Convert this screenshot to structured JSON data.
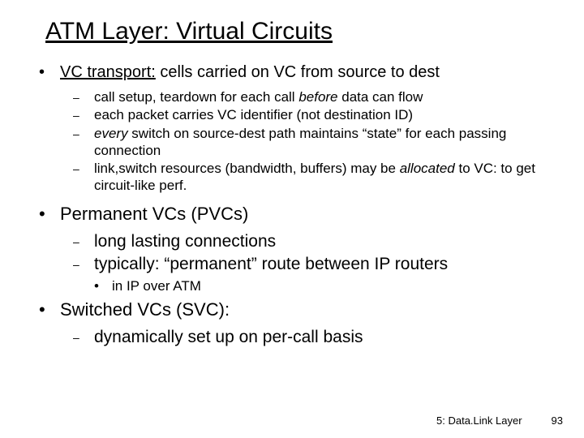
{
  "title": "ATM Layer: Virtual Circuits",
  "b1_a_pre": "VC transport:",
  "b1_a_post": " cells carried on VC from source to dest",
  "b2_a1_pre": "call setup, teardown for each call ",
  "b2_a1_ital": "before",
  "b2_a1_post": " data can flow",
  "b2_a2": "each packet carries VC identifier (not destination ID)",
  "b2_a3_ital": "every",
  "b2_a3_post": " switch on source-dest path maintains “state” for each passing connection",
  "b2_a4_pre": "link,switch resources (bandwidth, buffers) may be ",
  "b2_a4_ital": "allocated",
  "b2_a4_post": " to VC: to get circuit-like perf.",
  "b1_b": "Permanent VCs (PVCs)",
  "b2_b1": "long lasting connections",
  "b2_b2": "typically: “permanent” route between IP routers",
  "b3_b": "in IP over ATM",
  "b1_c": "Switched VCs (SVC):",
  "b2_c1": "dynamically set up on per-call basis",
  "footer_label": "5: Data.Link Layer",
  "footer_page": "93"
}
